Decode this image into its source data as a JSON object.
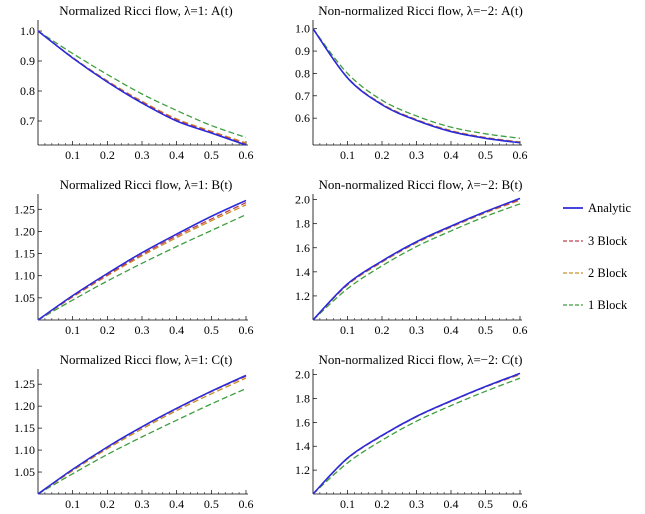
{
  "legend": {
    "placement": "right",
    "items": [
      {
        "label": "Analytic",
        "color": "#2b2bd9",
        "dash": "solid"
      },
      {
        "label": "3 Block",
        "color": "#c0404f",
        "dash": "dashed"
      },
      {
        "label": "2 Block",
        "color": "#c8902a",
        "dash": "dashed"
      },
      {
        "label": "1 Block",
        "color": "#3f9e3f",
        "dash": "dashed"
      }
    ]
  },
  "chart_data": [
    {
      "type": "line",
      "title": "Normalized Ricci flow, λ=1: A(t)",
      "x": [
        0,
        0.1,
        0.2,
        0.3,
        0.4,
        0.5,
        0.6
      ],
      "xlim": [
        0,
        0.6
      ],
      "ylim": [
        0.62,
        1.03
      ],
      "xticks": [
        "0.1",
        "0.2",
        "0.3",
        "0.4",
        "0.5",
        "0.6"
      ],
      "yticks": [
        "0.7",
        "0.8",
        "0.9",
        "1.0"
      ],
      "grid": false,
      "series": [
        {
          "name": "Analytic",
          "values": [
            1.0,
            0.91,
            0.83,
            0.76,
            0.7,
            0.66,
            0.62
          ]
        },
        {
          "name": "3 Block",
          "values": [
            1.0,
            0.911,
            0.832,
            0.763,
            0.704,
            0.663,
            0.623
          ]
        },
        {
          "name": "2 Block",
          "values": [
            1.0,
            0.912,
            0.834,
            0.766,
            0.707,
            0.666,
            0.627
          ]
        },
        {
          "name": "1 Block",
          "values": [
            1.0,
            0.925,
            0.855,
            0.79,
            0.735,
            0.685,
            0.645
          ]
        }
      ]
    },
    {
      "type": "line",
      "title": "Non-normalized Ricci flow, λ=−2: A(t)",
      "x": [
        0,
        0.1,
        0.2,
        0.3,
        0.4,
        0.5,
        0.6
      ],
      "xlim": [
        0,
        0.6
      ],
      "ylim": [
        0.48,
        1.03
      ],
      "xticks": [
        "0.1",
        "0.2",
        "0.3",
        "0.4",
        "0.5",
        "0.6"
      ],
      "yticks": [
        "0.6",
        "0.7",
        "0.8",
        "0.9",
        "1.0"
      ],
      "grid": false,
      "series": [
        {
          "name": "Analytic",
          "values": [
            1.0,
            0.78,
            0.66,
            0.59,
            0.54,
            0.51,
            0.49
          ]
        },
        {
          "name": "3 Block",
          "values": [
            1.0,
            0.781,
            0.662,
            0.592,
            0.542,
            0.512,
            0.492
          ]
        },
        {
          "name": "2 Block",
          "values": [
            1.0,
            0.782,
            0.664,
            0.594,
            0.545,
            0.514,
            0.494
          ]
        },
        {
          "name": "1 Block",
          "values": [
            1.0,
            0.8,
            0.68,
            0.61,
            0.56,
            0.53,
            0.51
          ]
        }
      ]
    },
    {
      "type": "line",
      "title": "Normalized Ricci flow, λ=1: B(t)",
      "x": [
        0,
        0.1,
        0.2,
        0.3,
        0.4,
        0.5,
        0.6
      ],
      "xlim": [
        0,
        0.6
      ],
      "ylim": [
        1.0,
        1.28
      ],
      "xticks": [
        "0.1",
        "0.2",
        "0.3",
        "0.4",
        "0.5",
        "0.6"
      ],
      "yticks": [
        "1.05",
        "1.10",
        "1.15",
        "1.20",
        "1.25"
      ],
      "grid": false,
      "series": [
        {
          "name": "Analytic",
          "values": [
            1.0,
            1.055,
            1.105,
            1.152,
            1.194,
            1.234,
            1.27
          ]
        },
        {
          "name": "3 Block",
          "values": [
            1.0,
            1.053,
            1.102,
            1.148,
            1.19,
            1.228,
            1.265
          ]
        },
        {
          "name": "2 Block",
          "values": [
            1.0,
            1.052,
            1.1,
            1.145,
            1.186,
            1.224,
            1.26
          ]
        },
        {
          "name": "1 Block",
          "values": [
            1.0,
            1.045,
            1.088,
            1.128,
            1.166,
            1.202,
            1.238
          ]
        }
      ]
    },
    {
      "type": "line",
      "title": "Non-normalized Ricci flow, λ=−2: B(t)",
      "x": [
        0,
        0.1,
        0.2,
        0.3,
        0.4,
        0.5,
        0.6
      ],
      "xlim": [
        0,
        0.6
      ],
      "ylim": [
        1.0,
        2.03
      ],
      "xticks": [
        "0.1",
        "0.2",
        "0.3",
        "0.4",
        "0.5",
        "0.6"
      ],
      "yticks": [
        "1.2",
        "1.4",
        "1.6",
        "1.8",
        "2.0"
      ],
      "grid": false,
      "series": [
        {
          "name": "Analytic",
          "values": [
            1.0,
            1.3,
            1.49,
            1.65,
            1.78,
            1.9,
            2.01
          ]
        },
        {
          "name": "3 Block",
          "values": [
            1.0,
            1.295,
            1.485,
            1.645,
            1.775,
            1.895,
            2.0
          ]
        },
        {
          "name": "2 Block",
          "values": [
            1.0,
            1.29,
            1.48,
            1.64,
            1.77,
            1.89,
            1.995
          ]
        },
        {
          "name": "1 Block",
          "values": [
            1.0,
            1.26,
            1.45,
            1.61,
            1.74,
            1.86,
            1.965
          ]
        }
      ]
    },
    {
      "type": "line",
      "title": "Normalized Ricci flow, λ=1: C(t)",
      "x": [
        0,
        0.1,
        0.2,
        0.3,
        0.4,
        0.5,
        0.6
      ],
      "xlim": [
        0,
        0.6
      ],
      "ylim": [
        1.0,
        1.28
      ],
      "xticks": [
        "0.1",
        "0.2",
        "0.3",
        "0.4",
        "0.5",
        "0.6"
      ],
      "yticks": [
        "1.05",
        "1.10",
        "1.15",
        "1.20",
        "1.25"
      ],
      "grid": false,
      "series": [
        {
          "name": "Analytic",
          "values": [
            1.0,
            1.056,
            1.107,
            1.153,
            1.195,
            1.234,
            1.27
          ]
        },
        {
          "name": "3 Block",
          "values": [
            1.0,
            1.055,
            1.106,
            1.152,
            1.194,
            1.233,
            1.268
          ]
        },
        {
          "name": "2 Block",
          "values": [
            1.0,
            1.053,
            1.103,
            1.148,
            1.19,
            1.228,
            1.264
          ]
        },
        {
          "name": "1 Block",
          "values": [
            1.0,
            1.046,
            1.09,
            1.13,
            1.168,
            1.205,
            1.24
          ]
        }
      ]
    },
    {
      "type": "line",
      "title": "Non-normalized Ricci flow, λ=−2: C(t)",
      "x": [
        0,
        0.1,
        0.2,
        0.3,
        0.4,
        0.5,
        0.6
      ],
      "xlim": [
        0,
        0.6
      ],
      "ylim": [
        1.0,
        2.03
      ],
      "xticks": [
        "0.1",
        "0.2",
        "0.3",
        "0.4",
        "0.5",
        "0.6"
      ],
      "yticks": [
        "1.2",
        "1.4",
        "1.6",
        "1.8",
        "2.0"
      ],
      "grid": false,
      "series": [
        {
          "name": "Analytic",
          "values": [
            1.0,
            1.3,
            1.49,
            1.65,
            1.78,
            1.9,
            2.01
          ]
        },
        {
          "name": "3 Block",
          "values": [
            1.0,
            1.298,
            1.488,
            1.648,
            1.778,
            1.898,
            2.005
          ]
        },
        {
          "name": "2 Block",
          "values": [
            1.0,
            1.296,
            1.486,
            1.646,
            1.776,
            1.896,
            2.0
          ]
        },
        {
          "name": "1 Block",
          "values": [
            1.0,
            1.26,
            1.45,
            1.61,
            1.74,
            1.86,
            1.97
          ]
        }
      ]
    }
  ]
}
